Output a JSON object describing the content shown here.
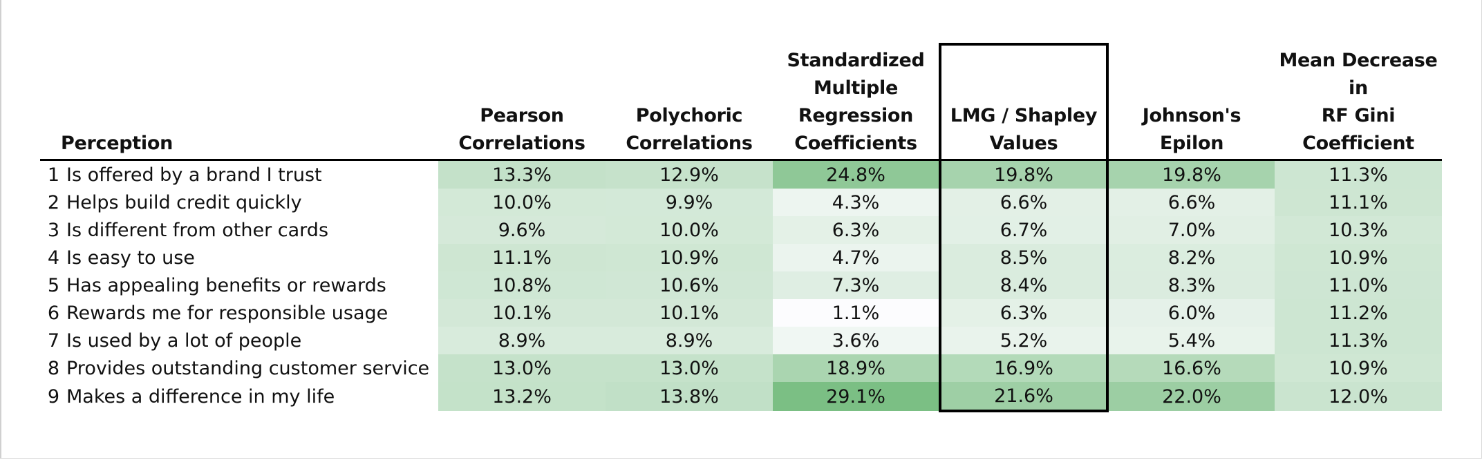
{
  "chart_data": {
    "type": "heatmap",
    "row_header": "Perception",
    "columns": [
      "Pearson Correlations",
      "Polychoric Correlations",
      "Standardized Multiple Regression Coefficients",
      "LMG / Shapley Values",
      "Johnson's Epilon",
      "Mean Decrease in RF Gini Coefficient"
    ],
    "column_header_lines": [
      [
        "Pearson",
        "Correlations"
      ],
      [
        "Polychoric",
        "Correlations"
      ],
      [
        "Standardized",
        "Multiple",
        "Regression",
        "Coefficients"
      ],
      [
        "LMG / Shapley",
        "Values"
      ],
      [
        "Johnson's Epilon"
      ],
      [
        "Mean Decrease in",
        "RF Gini Coefficient"
      ]
    ],
    "highlighted_column": "LMG / Shapley Values",
    "rows": [
      {
        "num": "1",
        "label": "Is offered by a brand I trust",
        "values": [
          13.3,
          12.9,
          24.8,
          19.8,
          19.8,
          11.3
        ]
      },
      {
        "num": "2",
        "label": "Helps build credit quickly",
        "values": [
          10.0,
          9.9,
          4.3,
          6.6,
          6.6,
          11.1
        ]
      },
      {
        "num": "3",
        "label": "Is different from other cards",
        "values": [
          9.6,
          10.0,
          6.3,
          6.7,
          7.0,
          10.3
        ]
      },
      {
        "num": "4",
        "label": "Is easy to use",
        "values": [
          11.1,
          10.9,
          4.7,
          8.5,
          8.2,
          10.9
        ]
      },
      {
        "num": "5",
        "label": "Has appealing benefits or rewards",
        "values": [
          10.8,
          10.6,
          7.3,
          8.4,
          8.3,
          11.0
        ]
      },
      {
        "num": "6",
        "label": "Rewards me for responsible usage",
        "values": [
          10.1,
          10.1,
          1.1,
          6.3,
          6.0,
          11.2
        ]
      },
      {
        "num": "7",
        "label": "Is used by a lot of people",
        "values": [
          8.9,
          8.9,
          3.6,
          5.2,
          5.4,
          11.3
        ]
      },
      {
        "num": "8",
        "label": "Provides outstanding customer service",
        "values": [
          13.0,
          13.0,
          18.9,
          16.9,
          16.6,
          10.9
        ]
      },
      {
        "num": "9",
        "label": "Makes a difference in my life",
        "values": [
          13.2,
          13.8,
          29.1,
          21.6,
          22.0,
          12.0
        ]
      }
    ],
    "value_suffix": "%",
    "color_scale": {
      "low": "#fcfcfe",
      "high": "#7bbf84"
    }
  }
}
